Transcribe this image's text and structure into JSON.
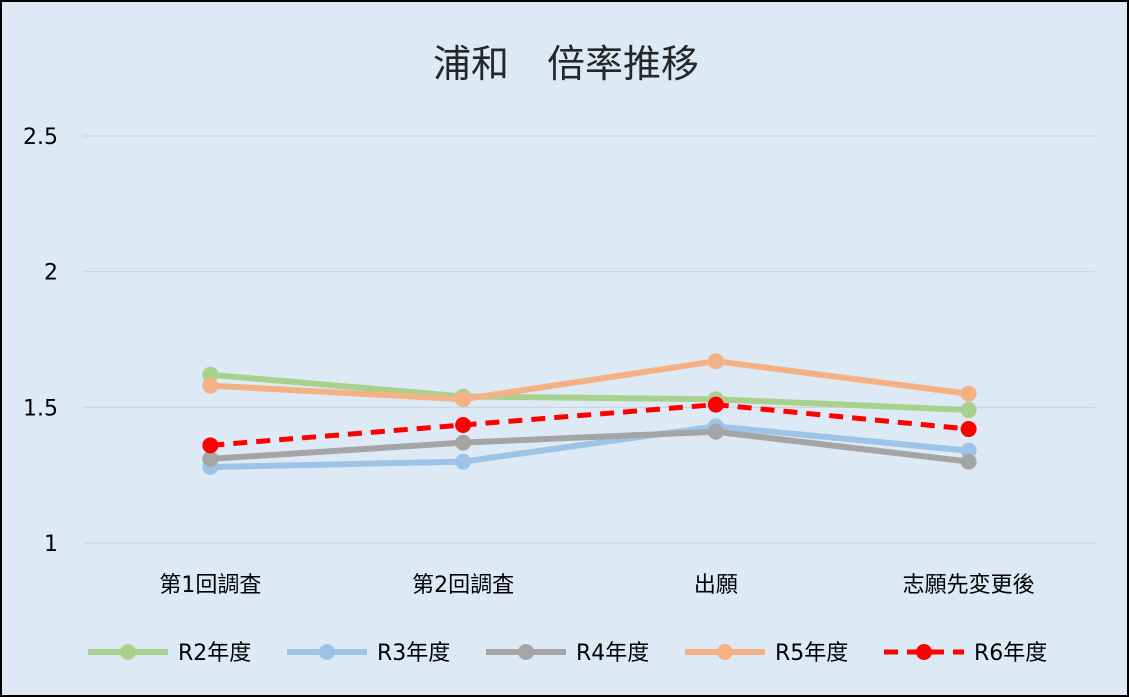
{
  "chart_data": {
    "type": "line",
    "title": "浦和　倍率推移",
    "categories": [
      "第1回調査",
      "第2回調査",
      "出願",
      "志願先変更後"
    ],
    "ylim": [
      1,
      2.5
    ],
    "yticks": [
      "1",
      "1.5",
      "2",
      "2.5"
    ],
    "ytick_values": [
      1,
      1.5,
      2,
      2.5
    ],
    "grid": true,
    "legend_position": "bottom",
    "series": [
      {
        "name": "R2年度",
        "color": "#a9d18e",
        "dashed": false,
        "values": [
          1.62,
          1.54,
          1.53,
          1.49
        ]
      },
      {
        "name": "R3年度",
        "color": "#9dc3e6",
        "dashed": false,
        "values": [
          1.28,
          1.3,
          1.43,
          1.34
        ]
      },
      {
        "name": "R4年度",
        "color": "#a5a5a5",
        "dashed": false,
        "values": [
          1.31,
          1.37,
          1.41,
          1.3
        ]
      },
      {
        "name": "R5年度",
        "color": "#f4b183",
        "dashed": false,
        "values": [
          1.58,
          1.53,
          1.67,
          1.55
        ]
      },
      {
        "name": "R6年度",
        "color": "#ff0000",
        "dashed": true,
        "values": [
          1.36,
          1.435,
          1.51,
          1.42
        ]
      }
    ]
  }
}
